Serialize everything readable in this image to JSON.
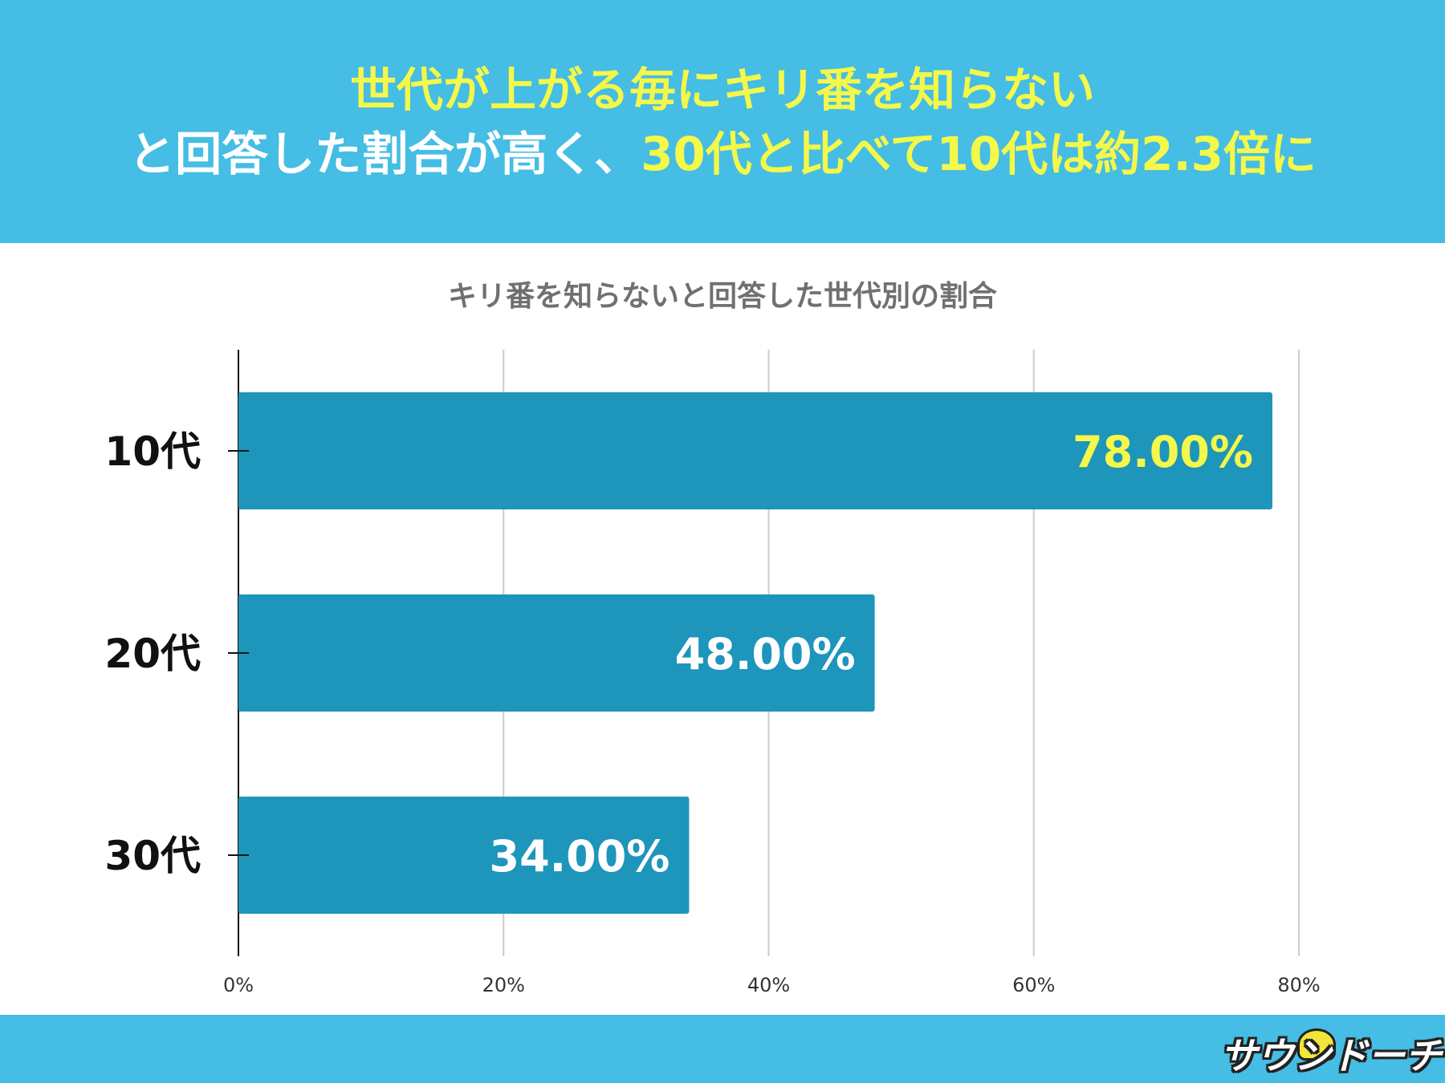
{
  "header": {
    "line1": "世代が上がる毎にキリ番を知らない",
    "line2_a": "と回答した割合が高く、",
    "line2_b": "30代と比べて10代は約2.3倍に"
  },
  "colors": {
    "header_bg": "#45bde4",
    "headline_yellow": "#f4f84a",
    "bar": "#1e95bb",
    "label_highlight": "#f4f84a",
    "label_default": "#ffffff"
  },
  "chart_data": {
    "type": "bar",
    "orientation": "horizontal",
    "title": "キリ番を知らないと回答した世代別の割合",
    "categories": [
      "10代",
      "20代",
      "30代"
    ],
    "values": [
      78,
      48,
      34
    ],
    "value_labels": [
      "78.00%",
      "48.00%",
      "34.00%"
    ],
    "highlight_index": 0,
    "xlim": [
      0,
      80
    ],
    "xticks": [
      0,
      20,
      40,
      60,
      80
    ],
    "xtick_labels": [
      "0%",
      "20%",
      "40%",
      "60%",
      "80%"
    ],
    "grid": true,
    "legend": "none"
  },
  "footer": {
    "logo_text": "サウンドーチ"
  }
}
